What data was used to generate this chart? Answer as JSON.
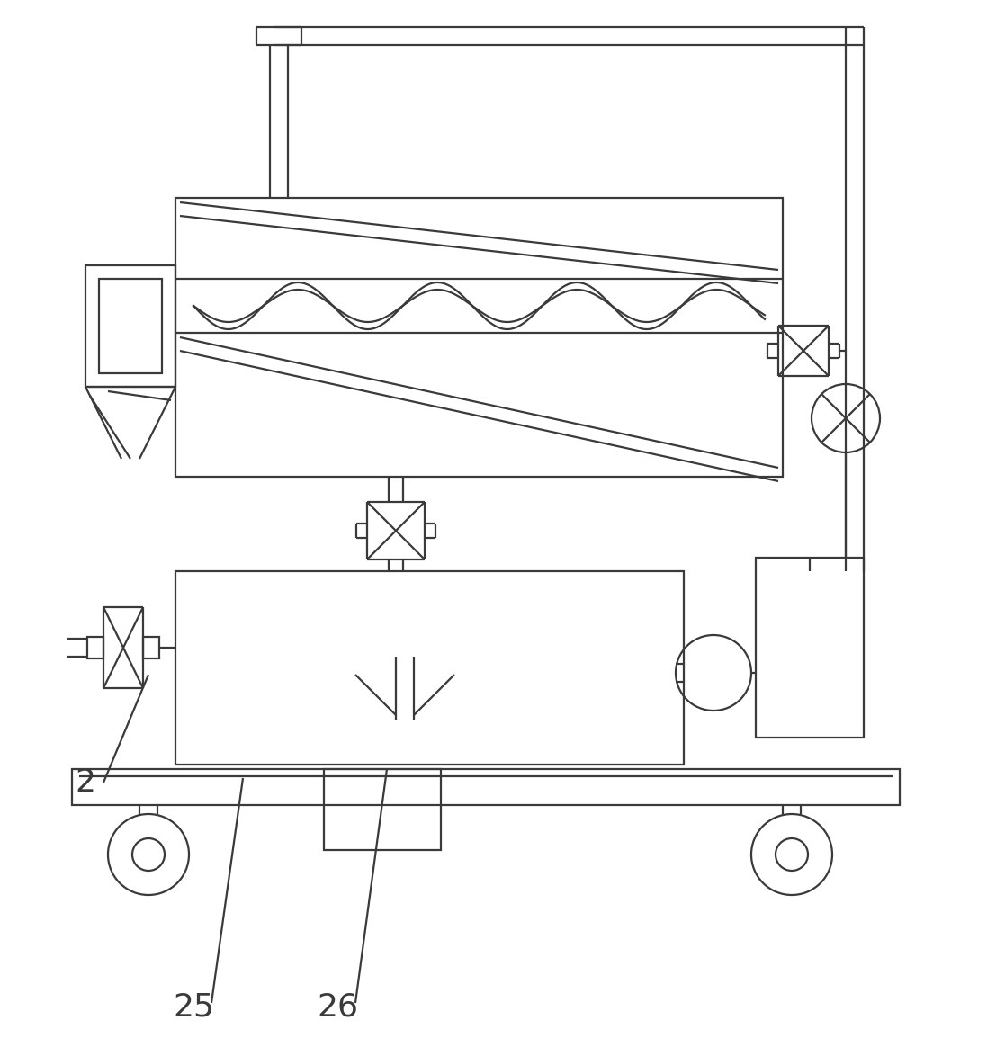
{
  "bg_color": "#ffffff",
  "line_color": "#3a3a3a",
  "lw": 1.6,
  "label_fontsize": 26,
  "label_2": [
    95,
    870
  ],
  "label_25": [
    215,
    1120
  ],
  "label_26": [
    375,
    1120
  ]
}
